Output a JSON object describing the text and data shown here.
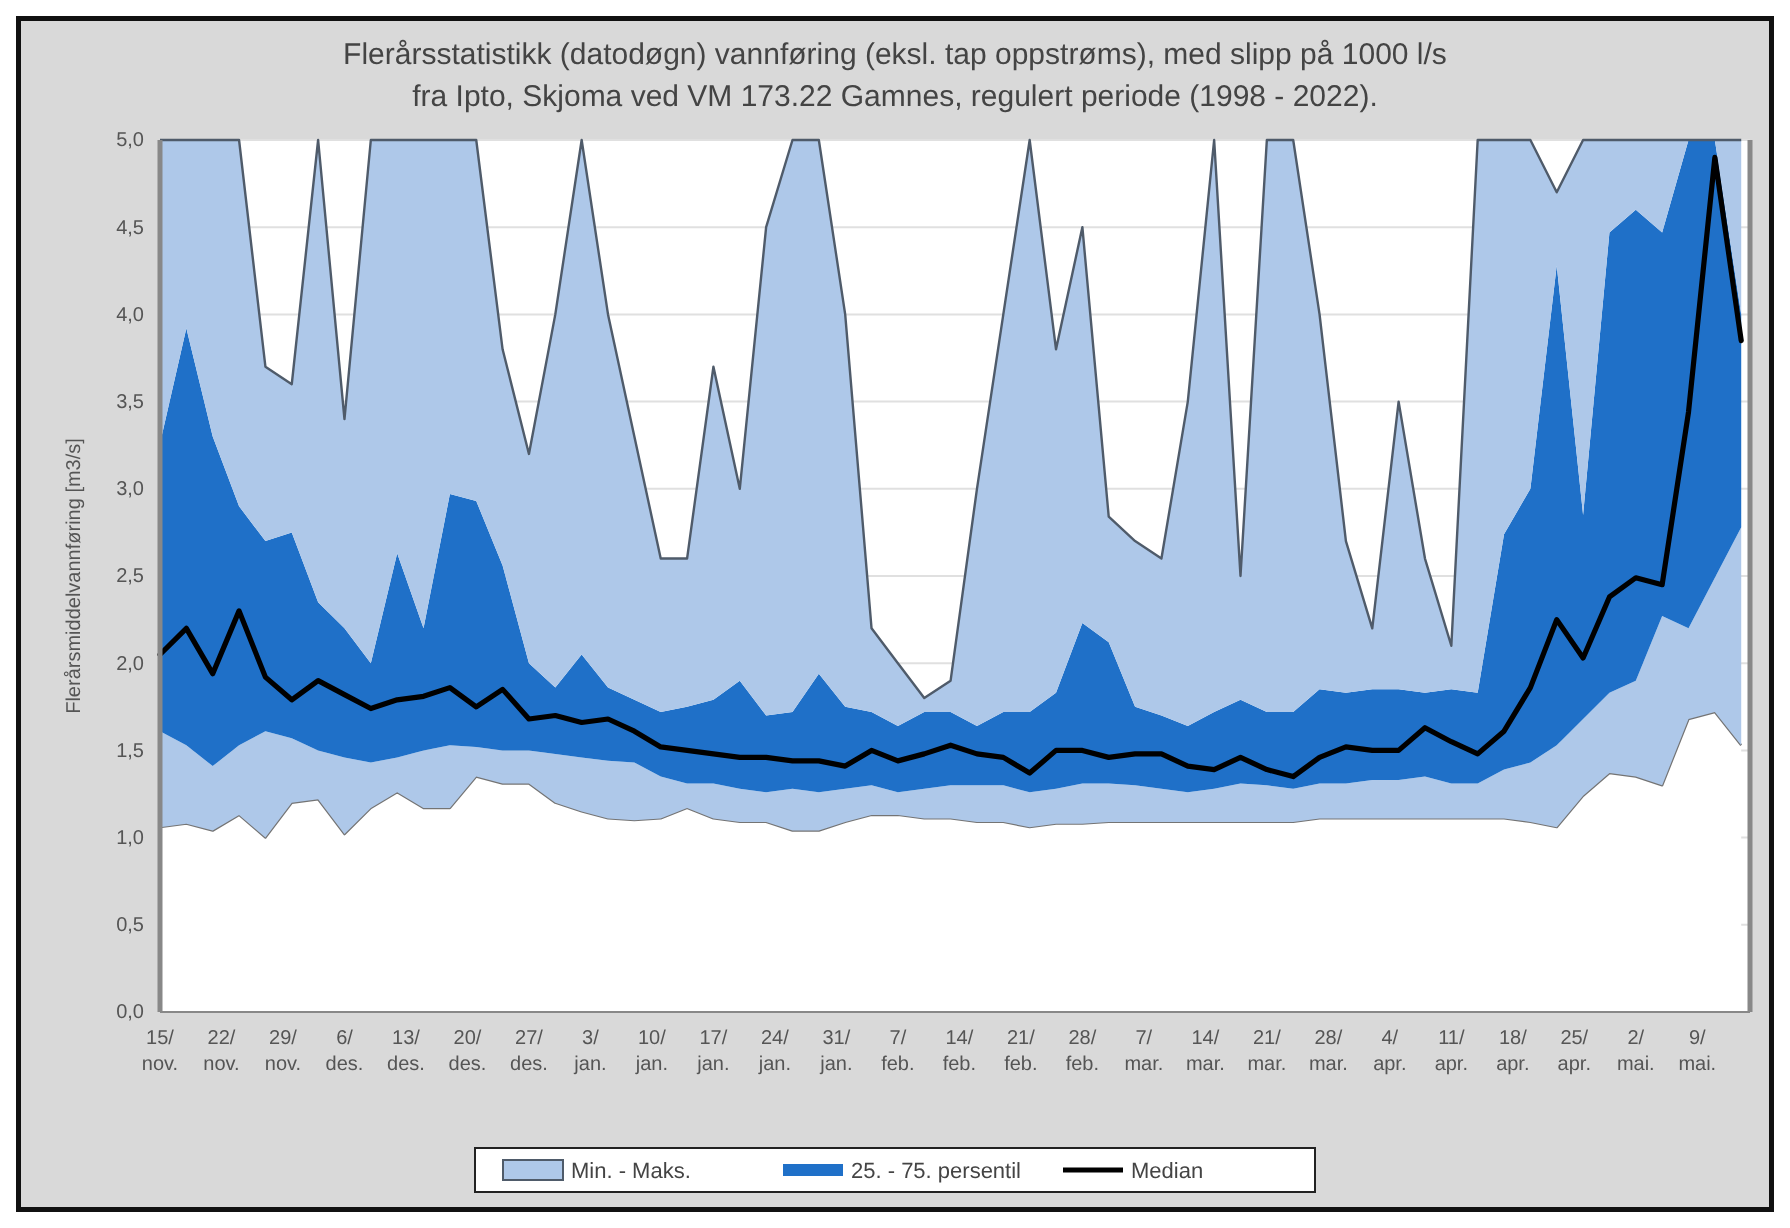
{
  "chart_data": {
    "type": "area",
    "title": "Flerårsstatistikk (datodøgn) vannføring (eksl. tap oppstrøms), med slipp på 1000 l/s",
    "subtitle": "fra Ipto, Skjoma ved VM 173.22 Gamnes, regulert periode (1998 - 2022).",
    "ylabel": "Flerårsmiddelvannføring [m3/s]",
    "x": [
      "2021-11-15",
      "2021-11-18",
      "2021-11-21",
      "2021-11-24",
      "2021-11-27",
      "2021-11-30",
      "2021-12-03",
      "2021-12-06",
      "2021-12-09",
      "2021-12-12",
      "2021-12-15",
      "2021-12-18",
      "2021-12-21",
      "2021-12-24",
      "2021-12-27",
      "2021-12-30",
      "2022-01-02",
      "2022-01-05",
      "2022-01-08",
      "2022-01-11",
      "2022-01-14",
      "2022-01-17",
      "2022-01-20",
      "2022-01-23",
      "2022-01-26",
      "2022-01-29",
      "2022-02-01",
      "2022-02-04",
      "2022-02-07",
      "2022-02-10",
      "2022-02-13",
      "2022-02-16",
      "2022-02-19",
      "2022-02-22",
      "2022-02-25",
      "2022-02-28",
      "2022-03-03",
      "2022-03-06",
      "2022-03-09",
      "2022-03-12",
      "2022-03-15",
      "2022-03-18",
      "2022-03-21",
      "2022-03-24",
      "2022-03-27",
      "2022-03-30",
      "2022-04-02",
      "2022-04-05",
      "2022-04-08",
      "2022-04-11",
      "2022-04-14",
      "2022-04-17",
      "2022-04-20",
      "2022-04-23",
      "2022-04-26",
      "2022-04-29",
      "2022-05-02",
      "2022-05-05",
      "2022-05-08",
      "2022-05-11",
      "2022-05-14"
    ],
    "xlim": [
      "2021-11-15",
      "2022-05-15"
    ],
    "xticks": [
      {
        "value": "2021-11-15",
        "label": "15/ nov."
      },
      {
        "value": "2021-11-22",
        "label": "22/ nov."
      },
      {
        "value": "2021-11-29",
        "label": "29/ nov."
      },
      {
        "value": "2021-12-06",
        "label": "6/ des."
      },
      {
        "value": "2021-12-13",
        "label": "13/ des."
      },
      {
        "value": "2021-12-20",
        "label": "20/ des."
      },
      {
        "value": "2021-12-27",
        "label": "27/ des."
      },
      {
        "value": "2022-01-03",
        "label": "3/ jan."
      },
      {
        "value": "2022-01-10",
        "label": "10/ jan."
      },
      {
        "value": "2022-01-17",
        "label": "17/ jan."
      },
      {
        "value": "2022-01-24",
        "label": "24/ jan."
      },
      {
        "value": "2022-01-31",
        "label": "31/ jan."
      },
      {
        "value": "2022-02-07",
        "label": "7/ feb."
      },
      {
        "value": "2022-02-14",
        "label": "14/ feb."
      },
      {
        "value": "2022-02-21",
        "label": "21/ feb."
      },
      {
        "value": "2022-02-28",
        "label": "28/ feb."
      },
      {
        "value": "2022-03-07",
        "label": "7/ mar."
      },
      {
        "value": "2022-03-14",
        "label": "14/ mar."
      },
      {
        "value": "2022-03-21",
        "label": "21/ mar."
      },
      {
        "value": "2022-03-28",
        "label": "28/ mar."
      },
      {
        "value": "2022-04-04",
        "label": "4/ apr."
      },
      {
        "value": "2022-04-11",
        "label": "11/ apr."
      },
      {
        "value": "2022-04-18",
        "label": "18/ apr."
      },
      {
        "value": "2022-04-25",
        "label": "25/ apr."
      },
      {
        "value": "2022-05-02",
        "label": "2/ mai."
      },
      {
        "value": "2022-05-09",
        "label": "9/ mai."
      }
    ],
    "ylim": [
      0,
      5
    ],
    "yticks": [
      {
        "value": 0,
        "label": "0,0"
      },
      {
        "value": 0.5,
        "label": "0,5"
      },
      {
        "value": 1,
        "label": "1,0"
      },
      {
        "value": 1.5,
        "label": "1,5"
      },
      {
        "value": 2,
        "label": "2,0"
      },
      {
        "value": 2.5,
        "label": "2,5"
      },
      {
        "value": 3,
        "label": "3,0"
      },
      {
        "value": 3.5,
        "label": "3,5"
      },
      {
        "value": 4,
        "label": "4,0"
      },
      {
        "value": 4.5,
        "label": "4,5"
      },
      {
        "value": 5,
        "label": "5,0"
      }
    ],
    "grid": "y",
    "legend": "bottom",
    "stacked": true,
    "series": [
      {
        "color": "#ffffff",
        "values": [
          1.06,
          1.08,
          1.04,
          1.13,
          1.0,
          1.2,
          1.22,
          1.02,
          1.17,
          1.26,
          1.17,
          1.17,
          1.35,
          1.31,
          1.31,
          1.2,
          1.15,
          1.11,
          1.1,
          1.11,
          1.17,
          1.11,
          1.09,
          1.09,
          1.04,
          1.04,
          1.09,
          1.13,
          1.13,
          1.11,
          1.11,
          1.09,
          1.09,
          1.06,
          1.08,
          1.08,
          1.09,
          1.09,
          1.09,
          1.09,
          1.09,
          1.09,
          1.09,
          1.09,
          1.11,
          1.11,
          1.11,
          1.11,
          1.11,
          1.11,
          1.11,
          1.11,
          1.09,
          1.06,
          1.24,
          1.37,
          1.35,
          1.3,
          1.68,
          1.72,
          1.53
        ]
      },
      {
        "name": "Min. - Maks.",
        "color": "#aec8e9",
        "values": [
          0.55,
          0.45,
          0.37,
          0.4,
          0.61,
          0.37,
          0.28,
          0.44,
          0.26,
          0.2,
          0.33,
          0.36,
          0.17,
          0.19,
          0.19,
          0.28,
          0.31,
          0.33,
          0.33,
          0.24,
          0.14,
          0.2,
          0.19,
          0.17,
          0.24,
          0.22,
          0.19,
          0.17,
          0.13,
          0.17,
          0.19,
          0.21,
          0.21,
          0.2,
          0.2,
          0.23,
          0.22,
          0.21,
          0.19,
          0.17,
          0.19,
          0.22,
          0.21,
          0.19,
          0.2,
          0.2,
          0.22,
          0.22,
          0.24,
          0.2,
          0.2,
          0.28,
          0.34,
          0.47,
          0.44,
          0.46,
          0.55,
          0.97,
          0.52,
          0.77,
          1.25
        ]
      },
      {
        "name": "25. - 75. persentil",
        "color": "#1f70c8",
        "values": [
          1.65,
          2.39,
          1.89,
          1.37,
          1.09,
          1.18,
          0.85,
          0.74,
          0.57,
          1.17,
          0.7,
          1.44,
          1.41,
          1.06,
          0.5,
          0.38,
          0.59,
          0.42,
          0.36,
          0.37,
          0.44,
          0.48,
          0.62,
          0.44,
          0.44,
          0.68,
          0.47,
          0.42,
          0.38,
          0.44,
          0.42,
          0.34,
          0.42,
          0.46,
          0.55,
          0.92,
          0.81,
          0.45,
          0.42,
          0.38,
          0.44,
          0.48,
          0.42,
          0.44,
          0.54,
          0.52,
          0.52,
          0.52,
          0.48,
          0.54,
          0.52,
          1.35,
          1.57,
          2.75,
          1.17,
          2.64,
          2.7,
          2.2,
          2.8,
          2.51,
          1.22
        ]
      },
      {
        "color": "#aec8e9",
        "values": [
          1.74,
          1.08,
          1.7,
          2.1,
          1.0,
          0.85,
          2.65,
          1.2,
          3.0,
          2.37,
          2.8,
          2.03,
          2.07,
          1.24,
          1.2,
          2.14,
          2.95,
          2.14,
          1.51,
          0.88,
          0.85,
          1.91,
          1.1,
          2.8,
          3.28,
          3.06,
          2.25,
          0.48,
          0.36,
          0.08,
          0.18,
          1.36,
          2.28,
          3.28,
          1.97,
          2.27,
          0.72,
          0.95,
          0.9,
          1.86,
          3.28,
          0.71,
          3.28,
          3.28,
          2.15,
          0.87,
          0.35,
          1.65,
          0.77,
          0.25,
          3.17,
          2.26,
          2.0,
          0.42,
          2.15,
          0.53,
          0.4,
          0.53,
          0,
          0,
          1.0
        ]
      },
      {
        "name": "Median",
        "type": "line",
        "color": "#000000",
        "values": [
          2.05,
          2.2,
          1.94,
          2.3,
          1.92,
          1.79,
          1.9,
          1.82,
          1.74,
          1.79,
          1.81,
          1.86,
          1.75,
          1.85,
          1.68,
          1.7,
          1.66,
          1.68,
          1.61,
          1.52,
          1.5,
          1.48,
          1.46,
          1.46,
          1.44,
          1.44,
          1.41,
          1.5,
          1.44,
          1.48,
          1.53,
          1.48,
          1.46,
          1.37,
          1.5,
          1.5,
          1.46,
          1.48,
          1.48,
          1.41,
          1.39,
          1.46,
          1.39,
          1.35,
          1.46,
          1.52,
          1.5,
          1.5,
          1.63,
          1.55,
          1.48,
          1.61,
          1.86,
          2.25,
          2.03,
          2.38,
          2.49,
          2.45,
          3.44,
          4.9,
          3.85
        ]
      }
    ]
  }
}
